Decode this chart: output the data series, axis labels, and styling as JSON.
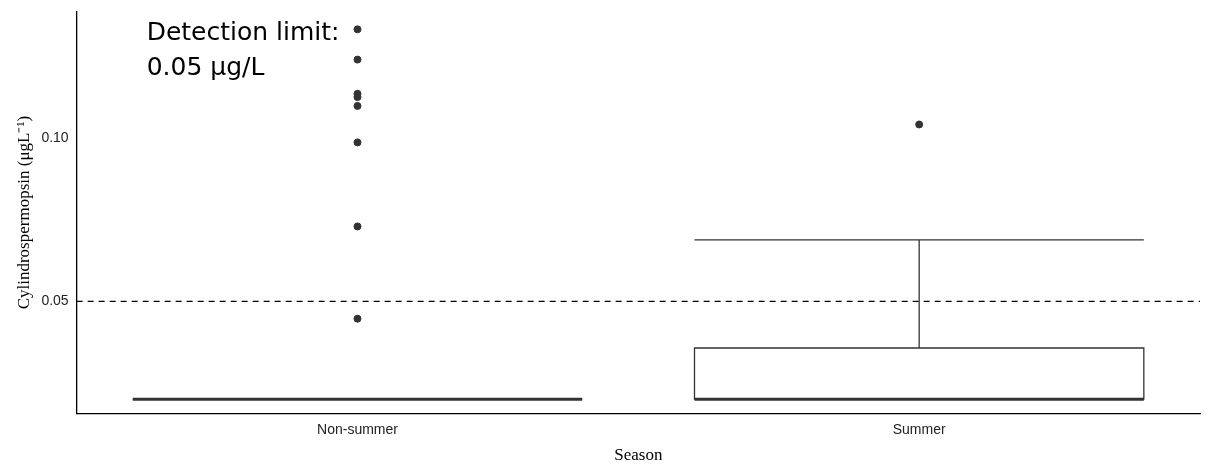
{
  "chart_data": {
    "type": "box",
    "xlabel": "Season",
    "ylabel": "Cylindrospermopsin (μgL⁻¹)",
    "categories": [
      "Non-summer",
      "Summer"
    ],
    "boxes": [
      {
        "low": 0.02,
        "q1": 0.02,
        "median": 0.02,
        "q3": 0.02,
        "high": 0.02,
        "outliers": [
          0.1335,
          0.1242,
          0.1137,
          0.1127,
          0.11,
          0.0988,
          0.073,
          0.0447
        ]
      },
      {
        "low": 0.02,
        "q1": 0.02,
        "median": 0.02,
        "q3": 0.0357,
        "high": 0.0689,
        "outliers": [
          0.1043
        ]
      }
    ],
    "color": "#333333",
    "ylim": [
      0.0155,
      0.139
    ],
    "yticks": [
      {
        "value": 0.05,
        "label": "0.05"
      },
      {
        "value": 0.1,
        "label": "0.10"
      }
    ],
    "grid": false,
    "legend": false,
    "ref_lines": [
      {
        "axis": "y",
        "value": 0.05,
        "line_style": "dashed",
        "color": "#000000"
      }
    ],
    "annotations": [
      "Detection limit:\n0.05 μg/L"
    ]
  }
}
